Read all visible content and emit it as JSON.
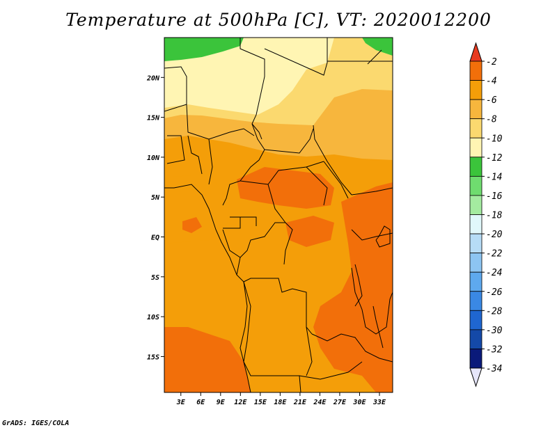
{
  "chart_data": {
    "type": "heatmap",
    "title": "Temperature at 500hPa [C], VT: 2020012200",
    "x_ticks": [
      "3E",
      "6E",
      "9E",
      "12E",
      "15E",
      "18E",
      "21E",
      "24E",
      "27E",
      "30E",
      "33E"
    ],
    "x_tick_values": [
      3,
      6,
      9,
      12,
      15,
      18,
      21,
      24,
      27,
      30,
      33
    ],
    "y_ticks": [
      "20N",
      "15N",
      "10N",
      "5N",
      "EQ",
      "5S",
      "10S",
      "15S"
    ],
    "y_tick_values": [
      20,
      15,
      10,
      5,
      0,
      -5,
      -10,
      -15
    ],
    "xlim": [
      0.5,
      35.0
    ],
    "ylim": [
      -19.5,
      25.0
    ],
    "colorbar": {
      "labels": [
        "-2",
        "-4",
        "-6",
        "-8",
        "-10",
        "-12",
        "-14",
        "-16",
        "-18",
        "-20",
        "-22",
        "-24",
        "-26",
        "-28",
        "-30",
        "-32",
        "-34"
      ],
      "colors": [
        "#e0452a",
        "#f26f0a",
        "#f49e09",
        "#f7b63d",
        "#fbd96f",
        "#fff5b3",
        "#3bc43b",
        "#6fdc6f",
        "#a4eba0",
        "#e1f8fb",
        "#b6dcf6",
        "#8dc5f2",
        "#5ea9ee",
        "#3a88e4",
        "#1f66d0",
        "#1449a8",
        "#0a1a7a"
      ],
      "over_color": "#e83a20",
      "under_color": "#e6e6fa"
    },
    "regions": [
      {
        "level": "-4 to -2",
        "color": "#f26f0a"
      },
      {
        "level": "-6 to -4",
        "color": "#f49e09"
      },
      {
        "level": "-8 to -6",
        "color": "#f7b63d"
      },
      {
        "level": "-10 to -8",
        "color": "#fbd96f"
      },
      {
        "level": "-12 to -10",
        "color": "#fff5b3"
      },
      {
        "level": "-14 to -12",
        "color": "#3bc43b"
      }
    ]
  },
  "credit": "GrADS: IGES/COLA"
}
